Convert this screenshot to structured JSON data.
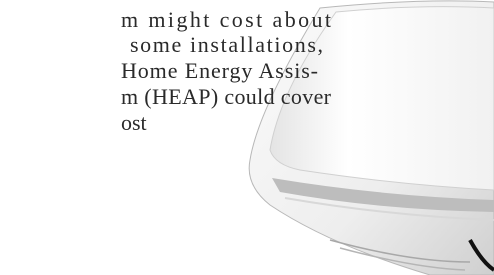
{
  "text": {
    "lines": [
      "m might cost about",
      "some installations,",
      "Home Energy Assis-",
      "m (HEAP) could cover",
      "ost"
    ]
  }
}
